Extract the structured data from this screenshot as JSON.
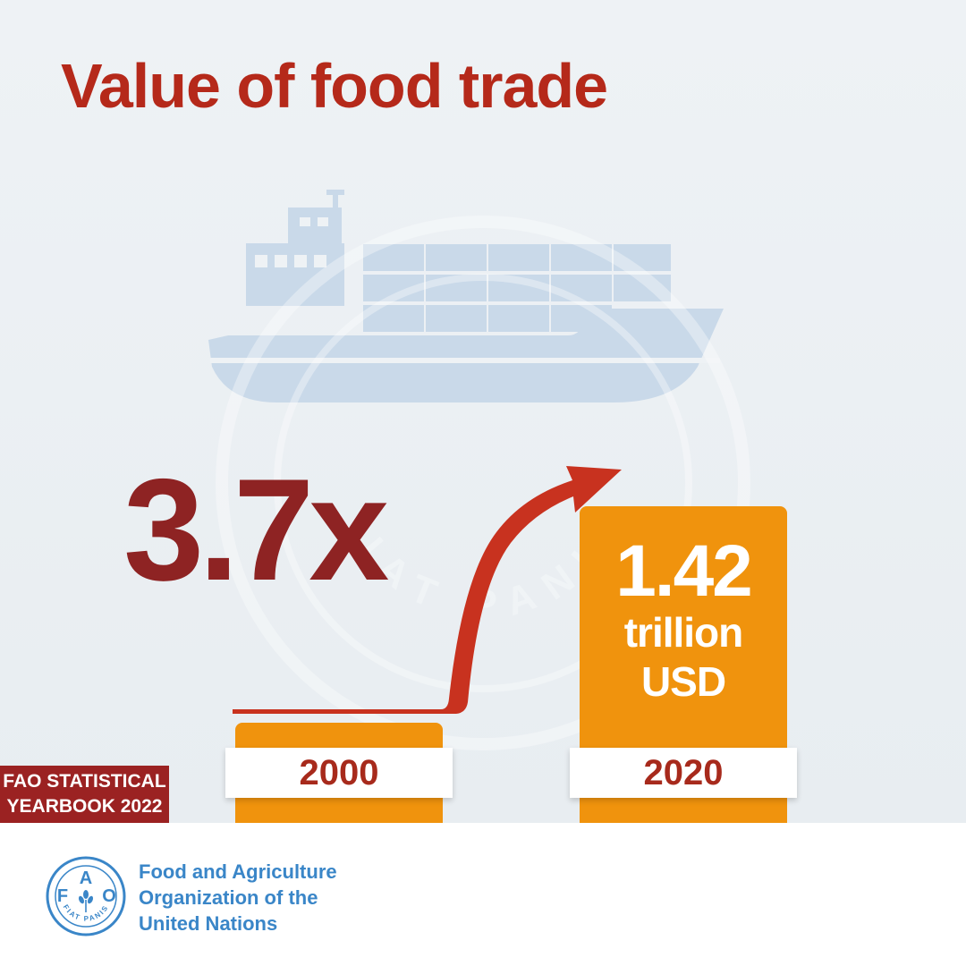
{
  "title": "Value of food trade",
  "multiplier": "3.7x",
  "bars": [
    {
      "year": "2000"
    },
    {
      "year": "2020",
      "value": "1.42",
      "unit_line1": "trillion",
      "unit_line2": "USD"
    }
  ],
  "badge": {
    "line1": "FAO STATISTICAL",
    "line2": "YEARBOOK 2022"
  },
  "footer": {
    "line1": "Food and Agriculture",
    "line2": "Organization of the",
    "line3": "United Nations"
  },
  "logo": {
    "letters": [
      "F",
      "A",
      "O"
    ],
    "motto": "FIAT PANIS"
  },
  "watermark": {
    "motto": "FIAT PANIS"
  },
  "icons": {
    "ship": "cargo-ship-icon",
    "arrow": "growth-arrow-icon",
    "logo": "fao-logo-icon"
  },
  "colors": {
    "title": "#b5291a",
    "multiplier": "#8e2323",
    "bar": "#f0930d",
    "arrow": "#c8321f",
    "year_text": "#a72a1c",
    "badge_bg": "#9b2222",
    "ship": "#c9d9e9",
    "fao_blue": "#3a86c8",
    "background": "#eef2f5"
  }
}
